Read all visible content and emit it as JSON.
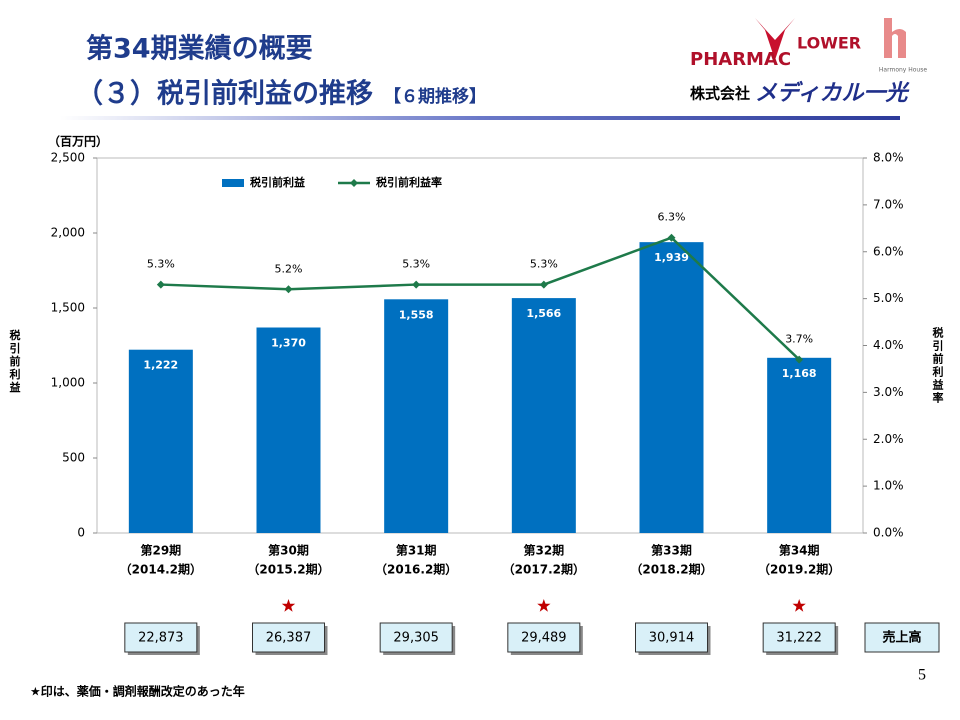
{
  "header": {
    "title_line1": "第34期業績の概要",
    "title_line2": "（３）税引前利益の推移",
    "title_suffix": "【６期推移】",
    "logo_pharmac": "PHARMAC",
    "logo_flower": "LOWER",
    "logo_harmony": "Harmony House",
    "company_prefix": "株式会社",
    "company_name": "メディカル一光"
  },
  "chart_data": {
    "type": "combo",
    "unit_label": "（百万円）",
    "y_label": "税引前利益",
    "y2_label": "税引前利益率",
    "categories": [
      "第29期",
      "第30期",
      "第31期",
      "第32期",
      "第33期",
      "第34期"
    ],
    "category_sublabels": [
      "（2014.2期）",
      "（2015.2期）",
      "（2016.2期）",
      "（2017.2期）",
      "（2018.2期）",
      "（2019.2期）"
    ],
    "series": [
      {
        "name": "税引前利益",
        "type": "bar",
        "color": "#0070c0",
        "values": [
          1222,
          1370,
          1558,
          1566,
          1939,
          1168
        ],
        "value_labels": [
          "1,222",
          "1,370",
          "1,558",
          "1,566",
          "1,939",
          "1,168"
        ]
      },
      {
        "name": "税引前利益率",
        "type": "line",
        "axis": "y2",
        "color": "#1e7a4a",
        "values": [
          5.3,
          5.2,
          5.3,
          5.3,
          6.3,
          3.7
        ],
        "value_labels": [
          "5.3%",
          "5.2%",
          "5.3%",
          "5.3%",
          "6.3%",
          "3.7%"
        ]
      }
    ],
    "ylim": [
      0,
      2500
    ],
    "yticks": [
      0,
      500,
      {
        "value": 1000,
        "label": "1,000"
      },
      {
        "value": 1500,
        "label": "1,500"
      },
      {
        "value": 2000,
        "label": "2,000"
      },
      {
        "value": 2500,
        "label": "2,500"
      }
    ],
    "y2lim": [
      0,
      8
    ],
    "y2ticks": [
      {
        "value": 0,
        "label": "0.0%"
      },
      {
        "value": 1,
        "label": "1.0%"
      },
      {
        "value": 2,
        "label": "2.0%"
      },
      {
        "value": 3,
        "label": "3.0%"
      },
      {
        "value": 4,
        "label": "4.0%"
      },
      {
        "value": 5,
        "label": "5.0%"
      },
      {
        "value": 6,
        "label": "6.0%"
      },
      {
        "value": 7,
        "label": "7.0%"
      },
      {
        "value": 8,
        "label": "8.0%"
      }
    ],
    "legend": "top-left"
  },
  "sales": {
    "label": "売上高",
    "values": [
      "22,873",
      "26,387",
      "29,305",
      "29,489",
      "30,914",
      "31,222"
    ],
    "revision_year": [
      false,
      true,
      false,
      true,
      false,
      true
    ]
  },
  "footnote": "★印は、薬価・調剤報酬改定のあった年",
  "page_number": "5"
}
